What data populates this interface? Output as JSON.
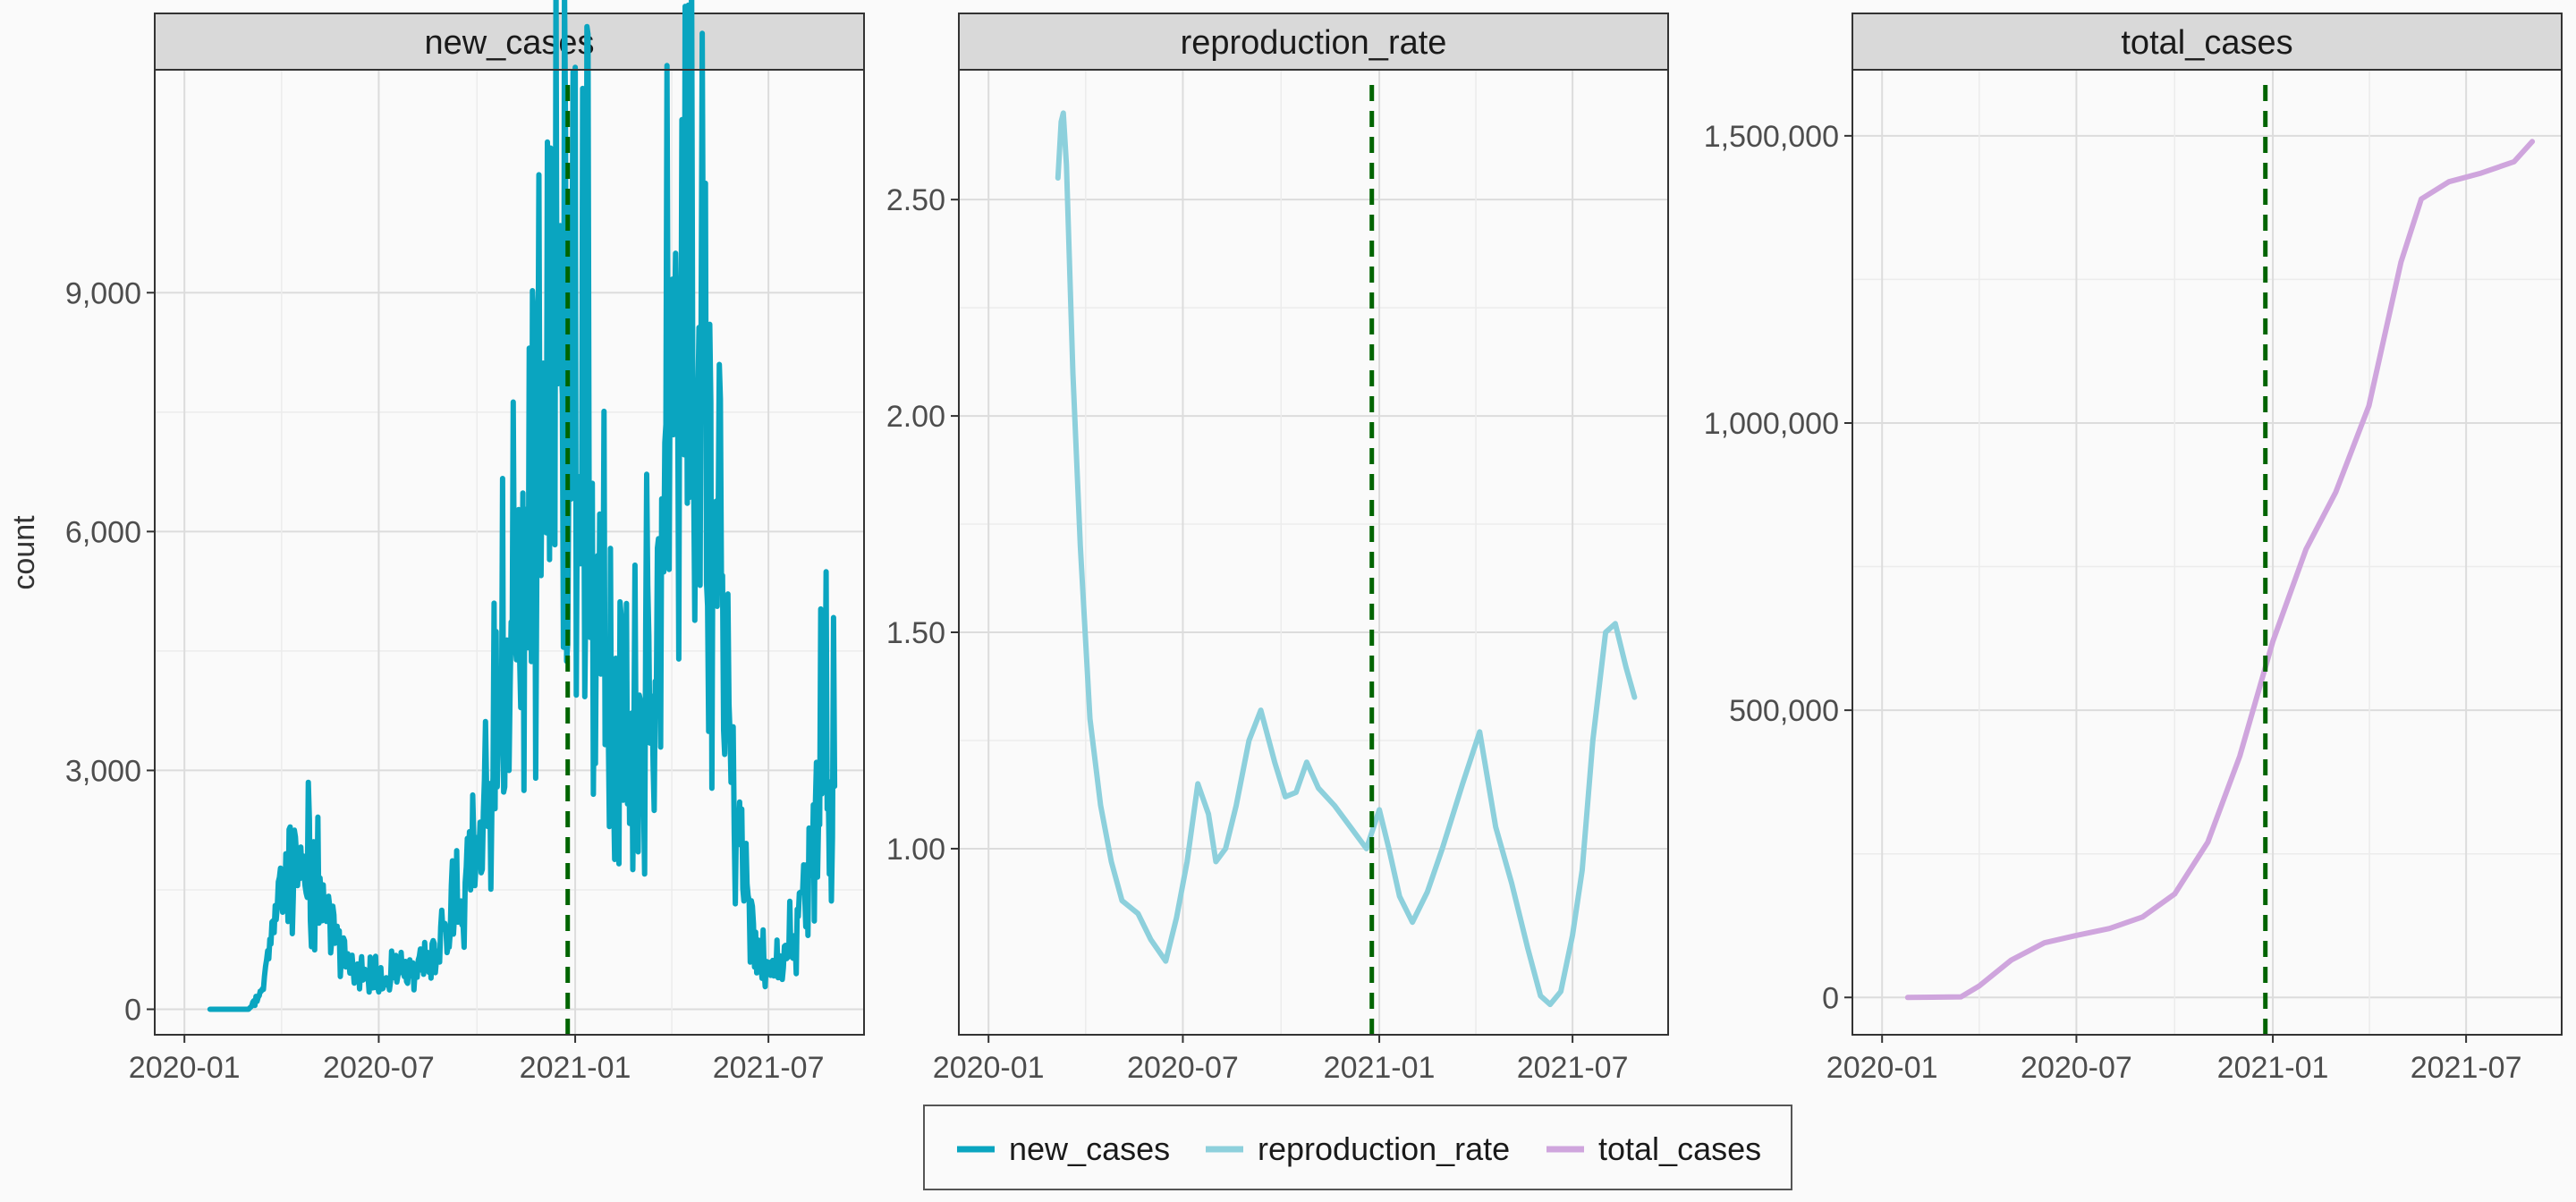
{
  "chart_data": {
    "type": "line",
    "layout": "faceted (3 panels, independent y-scales, shared date x-axis)",
    "ylabel": "count",
    "grid": true,
    "legend": {
      "placement": "bottom",
      "entries": [
        {
          "name": "new_cases",
          "color": "#0aa5c0"
        },
        {
          "name": "reproduction_rate",
          "color": "#8dd0dc"
        },
        {
          "name": "total_cases",
          "color": "#cfa5dd"
        }
      ]
    },
    "x_axis": {
      "ticks": [
        "2020-01",
        "2020-07",
        "2021-01",
        "2021-07"
      ],
      "range": [
        "2020-01-01",
        "2021-09-10"
      ]
    },
    "reference_line": {
      "x": "2020-12-25",
      "color": "#006400",
      "style": "dashed"
    },
    "facets": [
      {
        "title": "new_cases",
        "color": "#0aa5c0",
        "ylim": [
          -320,
          11800
        ],
        "y_ticks": [
          0,
          3000,
          6000,
          9000
        ],
        "y_tick_labels": [
          "0",
          "3,000",
          "6,000",
          "9,000"
        ],
        "noisy": true,
        "points": [
          [
            "2020-01-25",
            0
          ],
          [
            "2020-03-01",
            0
          ],
          [
            "2020-03-10",
            120
          ],
          [
            "2020-03-20",
            700
          ],
          [
            "2020-03-30",
            1400
          ],
          [
            "2020-04-08",
            1900
          ],
          [
            "2020-04-18",
            1650
          ],
          [
            "2020-05-01",
            1500
          ],
          [
            "2020-05-15",
            1200
          ],
          [
            "2020-06-01",
            650
          ],
          [
            "2020-06-15",
            420
          ],
          [
            "2020-07-01",
            340
          ],
          [
            "2020-07-15",
            400
          ],
          [
            "2020-08-01",
            450
          ],
          [
            "2020-08-15",
            600
          ],
          [
            "2020-09-01",
            900
          ],
          [
            "2020-09-15",
            1200
          ],
          [
            "2020-10-01",
            1900
          ],
          [
            "2020-10-15",
            2800
          ],
          [
            "2020-11-01",
            4200
          ],
          [
            "2020-11-15",
            5500
          ],
          [
            "2020-12-01",
            6500
          ],
          [
            "2020-12-15",
            7000
          ],
          [
            "2021-01-01",
            7600
          ],
          [
            "2021-01-10",
            7200
          ],
          [
            "2021-01-20",
            5500
          ],
          [
            "2021-02-01",
            4000
          ],
          [
            "2021-02-15",
            3000
          ],
          [
            "2021-03-01",
            3300
          ],
          [
            "2021-03-15",
            4200
          ],
          [
            "2021-04-01",
            8000
          ],
          [
            "2021-04-10",
            9000
          ],
          [
            "2021-04-20",
            8000
          ],
          [
            "2021-05-01",
            7000
          ],
          [
            "2021-05-15",
            5000
          ],
          [
            "2021-06-01",
            2600
          ],
          [
            "2021-06-15",
            1100
          ],
          [
            "2021-06-25",
            600
          ],
          [
            "2021-07-10",
            500
          ],
          [
            "2021-07-25",
            800
          ],
          [
            "2021-08-10",
            2000
          ],
          [
            "2021-08-20",
            3300
          ],
          [
            "2021-09-01",
            2800
          ]
        ]
      },
      {
        "title": "reproduction_rate",
        "color": "#8dd0dc",
        "ylim": [
          0.57,
          2.8
        ],
        "y_ticks": [
          1.0,
          1.5,
          2.0,
          2.5
        ],
        "y_tick_labels": [
          "1.00",
          "1.50",
          "2.00",
          "2.50"
        ],
        "noisy": false,
        "points": [
          [
            "2020-03-06",
            2.55
          ],
          [
            "2020-03-09",
            2.68
          ],
          [
            "2020-03-11",
            2.7
          ],
          [
            "2020-03-14",
            2.58
          ],
          [
            "2020-03-20",
            2.1
          ],
          [
            "2020-03-27",
            1.7
          ],
          [
            "2020-04-05",
            1.3
          ],
          [
            "2020-04-15",
            1.1
          ],
          [
            "2020-04-25",
            0.97
          ],
          [
            "2020-05-05",
            0.88
          ],
          [
            "2020-05-20",
            0.85
          ],
          [
            "2020-06-01",
            0.79
          ],
          [
            "2020-06-15",
            0.74
          ],
          [
            "2020-06-25",
            0.84
          ],
          [
            "2020-07-05",
            0.97
          ],
          [
            "2020-07-15",
            1.15
          ],
          [
            "2020-07-25",
            1.08
          ],
          [
            "2020-08-01",
            0.97
          ],
          [
            "2020-08-10",
            1.0
          ],
          [
            "2020-08-20",
            1.1
          ],
          [
            "2020-09-01",
            1.25
          ],
          [
            "2020-09-12",
            1.32
          ],
          [
            "2020-09-25",
            1.2
          ],
          [
            "2020-10-05",
            1.12
          ],
          [
            "2020-10-15",
            1.13
          ],
          [
            "2020-10-25",
            1.2
          ],
          [
            "2020-11-05",
            1.14
          ],
          [
            "2020-11-20",
            1.1
          ],
          [
            "2020-12-05",
            1.05
          ],
          [
            "2020-12-20",
            1.0
          ],
          [
            "2021-01-01",
            1.09
          ],
          [
            "2021-01-10",
            1.0
          ],
          [
            "2021-01-20",
            0.89
          ],
          [
            "2021-02-01",
            0.83
          ],
          [
            "2021-02-15",
            0.9
          ],
          [
            "2021-03-01",
            1.0
          ],
          [
            "2021-03-20",
            1.15
          ],
          [
            "2021-04-05",
            1.27
          ],
          [
            "2021-04-20",
            1.05
          ],
          [
            "2021-05-05",
            0.92
          ],
          [
            "2021-05-20",
            0.77
          ],
          [
            "2021-06-01",
            0.66
          ],
          [
            "2021-06-10",
            0.64
          ],
          [
            "2021-06-20",
            0.67
          ],
          [
            "2021-07-01",
            0.8
          ],
          [
            "2021-07-10",
            0.95
          ],
          [
            "2021-07-20",
            1.25
          ],
          [
            "2021-08-01",
            1.5
          ],
          [
            "2021-08-10",
            1.52
          ],
          [
            "2021-08-20",
            1.42
          ],
          [
            "2021-08-28",
            1.35
          ]
        ]
      },
      {
        "title": "total_cases",
        "color": "#cfa5dd",
        "ylim": [
          -65000,
          1615000
        ],
        "y_ticks": [
          0,
          500000,
          1000000,
          1500000
        ],
        "y_tick_labels": [
          "0",
          "500,000",
          "1,000,000",
          "1,500,000"
        ],
        "noisy": false,
        "points": [
          [
            "2020-01-25",
            0
          ],
          [
            "2020-03-15",
            1000
          ],
          [
            "2020-04-01",
            20000
          ],
          [
            "2020-05-01",
            65000
          ],
          [
            "2020-06-01",
            95000
          ],
          [
            "2020-07-01",
            108000
          ],
          [
            "2020-08-01",
            120000
          ],
          [
            "2020-09-01",
            140000
          ],
          [
            "2020-10-01",
            180000
          ],
          [
            "2020-11-01",
            270000
          ],
          [
            "2020-12-01",
            420000
          ],
          [
            "2021-01-01",
            620000
          ],
          [
            "2021-02-01",
            780000
          ],
          [
            "2021-03-01",
            880000
          ],
          [
            "2021-04-01",
            1030000
          ],
          [
            "2021-05-01",
            1280000
          ],
          [
            "2021-05-20",
            1390000
          ],
          [
            "2021-06-15",
            1420000
          ],
          [
            "2021-07-15",
            1435000
          ],
          [
            "2021-08-15",
            1455000
          ],
          [
            "2021-09-01",
            1490000
          ]
        ]
      }
    ]
  }
}
